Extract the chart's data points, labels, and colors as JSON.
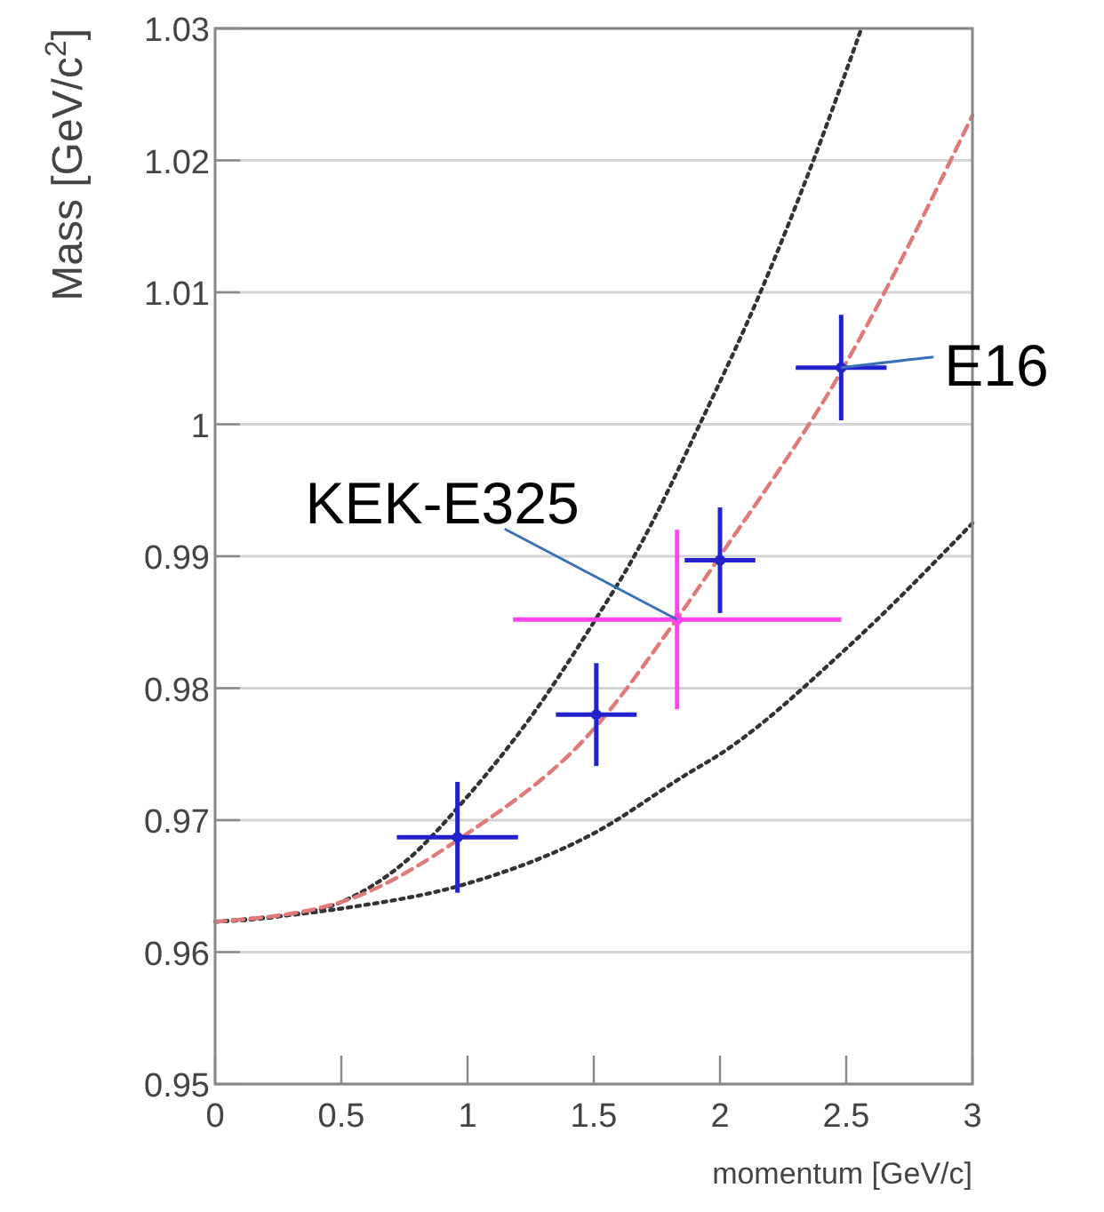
{
  "chart_data": {
    "type": "scatter",
    "xlabel": "momentum [GeV/c]",
    "ylabel": "Mass [GeV/c$^{2}$]",
    "xlim": [
      0,
      3
    ],
    "xticks": [
      0,
      0.5,
      1,
      1.5,
      2,
      2.5,
      3
    ],
    "ylim": [
      0.95,
      1.03
    ],
    "yticks": [
      0.95,
      0.96,
      0.97,
      0.98,
      0.99,
      1,
      1.01,
      1.02,
      1.03
    ],
    "grid": "y",
    "series": [
      {
        "type": "line",
        "color": "#333333",
        "line_style": "dotted",
        "x": [
          0,
          0.25,
          0.5,
          0.75,
          1,
          1.25,
          1.5,
          1.66,
          1.92,
          2.16,
          2.37,
          2.56
        ],
        "values": [
          0.9623,
          0.9627,
          0.9638,
          0.9668,
          0.9718,
          0.9778,
          0.985,
          0.99,
          1.0,
          1.01,
          1.02,
          1.03
        ]
      },
      {
        "type": "line",
        "color": "#333333",
        "line_style": "dotted",
        "x": [
          0,
          0.5,
          1,
          1.5,
          1.87,
          2,
          2.5,
          3
        ],
        "values": [
          0.9623,
          0.9633,
          0.9652,
          0.969,
          0.9735,
          0.975,
          0.983,
          0.9925
        ]
      },
      {
        "type": "line",
        "color": "#e07a7a",
        "line_style": "dashed",
        "x": [
          0,
          0.5,
          1,
          1.5,
          1.82,
          2,
          2.48,
          3
        ],
        "values": [
          0.9623,
          0.9638,
          0.969,
          0.9769,
          0.985,
          0.99,
          1.004,
          1.0234
        ]
      },
      {
        "marker": "circle",
        "color": "#2222cc",
        "x": [
          0.96,
          1.51,
          2.0,
          2.48
        ],
        "values": [
          0.9687,
          0.978,
          0.9897,
          1.0043
        ],
        "errors": [
          0.0042,
          0.0039,
          0.004,
          0.004
        ],
        "xerrors": [
          0.24,
          0.16,
          0.14,
          0.18
        ]
      },
      {
        "marker": "circle",
        "color": "#ff44ee",
        "x": [
          1.83
        ],
        "values": [
          0.9852
        ],
        "errors": [
          0.0068
        ],
        "xerrors": [
          0.65
        ]
      }
    ],
    "annotations": [
      {
        "text": "E16",
        "x": 2.48,
        "y": 1.0043
      },
      {
        "text": "KEK-E325",
        "x": 1.83,
        "y": 0.9852
      }
    ]
  }
}
